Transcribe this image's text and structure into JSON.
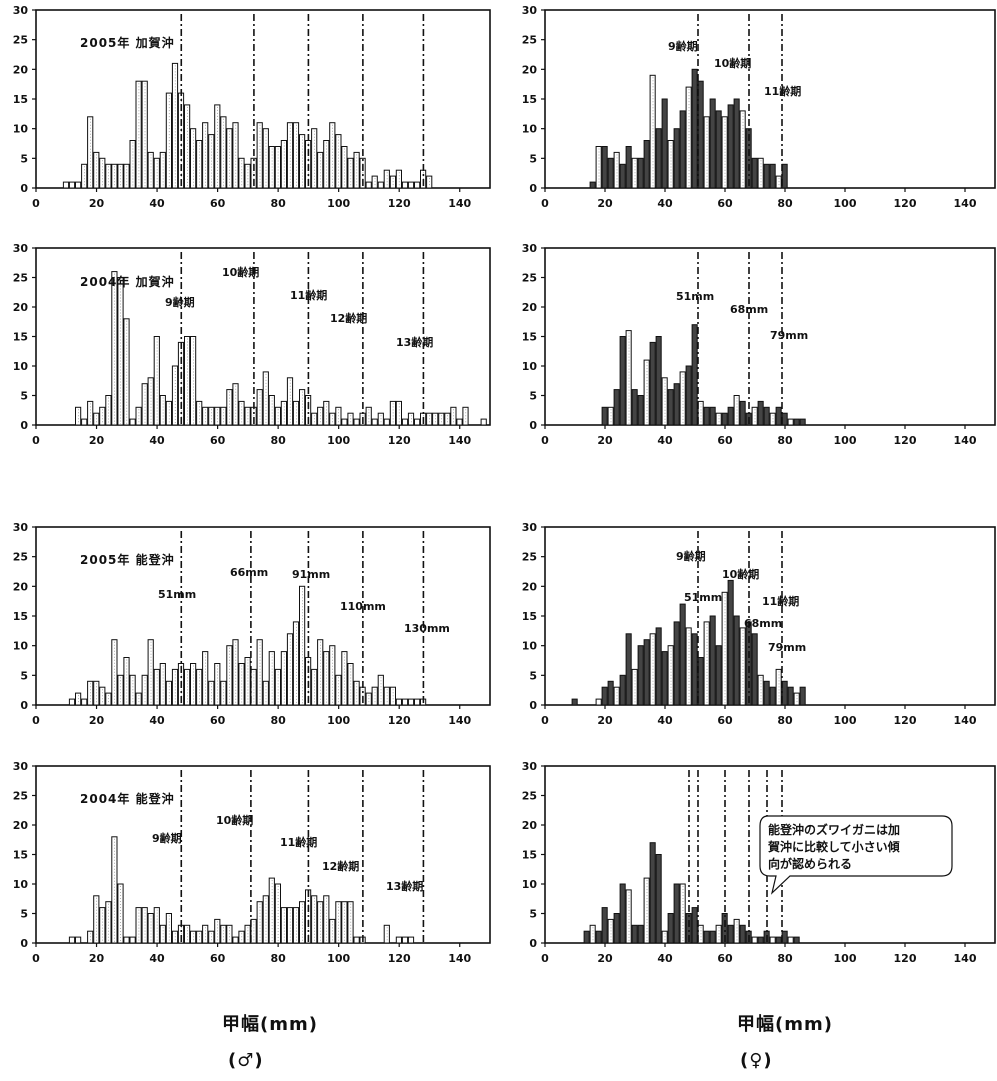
{
  "figure": {
    "xlabel": "甲幅(mm)",
    "sex_male": "(♂)",
    "sex_female": "(♀)"
  },
  "chart_data": [
    {
      "type": "bar",
      "panel": "male-2005-kaga",
      "title": "2005年  加賀沖",
      "xlim": [
        0,
        150
      ],
      "ylim": [
        0,
        30
      ],
      "xticks": [
        0,
        20,
        40,
        60,
        80,
        100,
        120,
        140
      ],
      "yticks": [
        0,
        5,
        10,
        15,
        20,
        25,
        30
      ],
      "lines": [
        48,
        72,
        90,
        108,
        128
      ],
      "labels": [],
      "x": [
        10,
        12,
        14,
        16,
        18,
        20,
        22,
        24,
        26,
        28,
        30,
        32,
        34,
        36,
        38,
        40,
        42,
        44,
        46,
        48,
        50,
        52,
        54,
        56,
        58,
        60,
        62,
        64,
        66,
        68,
        70,
        72,
        74,
        76,
        78,
        80,
        82,
        84,
        86,
        88,
        90,
        92,
        94,
        96,
        98,
        100,
        102,
        104,
        106,
        108,
        110,
        112,
        114,
        116,
        118,
        120,
        122,
        124,
        126,
        128,
        130,
        132
      ],
      "values": [
        1,
        1,
        1,
        4,
        12,
        6,
        5,
        4,
        4,
        4,
        4,
        8,
        18,
        18,
        6,
        5,
        6,
        16,
        21,
        16,
        14,
        10,
        8,
        11,
        9,
        14,
        12,
        10,
        11,
        5,
        4,
        5,
        11,
        10,
        7,
        7,
        8,
        11,
        11,
        9,
        8,
        10,
        6,
        8,
        11,
        9,
        7,
        5,
        6,
        5,
        1,
        2,
        1,
        3,
        2,
        3,
        1,
        1,
        1,
        3,
        2,
        0
      ]
    },
    {
      "type": "bar",
      "panel": "male-2004-kaga",
      "title": "2004年  加賀沖",
      "xlim": [
        0,
        150
      ],
      "ylim": [
        0,
        30
      ],
      "xticks": [
        0,
        20,
        40,
        60,
        80,
        100,
        120,
        140
      ],
      "yticks": [
        0,
        5,
        10,
        15,
        20,
        25,
        30
      ],
      "lines": [
        48,
        72,
        90,
        108,
        128
      ],
      "labels": [
        "9齢期",
        "10齢期",
        "11齢期",
        "12齢期",
        "13齢期"
      ],
      "x": [
        10,
        12,
        14,
        16,
        18,
        20,
        22,
        24,
        26,
        28,
        30,
        32,
        34,
        36,
        38,
        40,
        42,
        44,
        46,
        48,
        50,
        52,
        54,
        56,
        58,
        60,
        62,
        64,
        66,
        68,
        70,
        72,
        74,
        76,
        78,
        80,
        82,
        84,
        86,
        88,
        90,
        92,
        94,
        96,
        98,
        100,
        102,
        104,
        106,
        108,
        110,
        112,
        114,
        116,
        118,
        120,
        122,
        124,
        126,
        128,
        130,
        132,
        134,
        136,
        138,
        140,
        142,
        144,
        146,
        148
      ],
      "values": [
        0,
        0,
        3,
        1,
        4,
        2,
        3,
        5,
        26,
        25,
        18,
        1,
        3,
        7,
        8,
        15,
        5,
        4,
        10,
        14,
        15,
        15,
        4,
        3,
        3,
        3,
        3,
        6,
        7,
        4,
        3,
        3,
        6,
        9,
        5,
        3,
        4,
        8,
        4,
        6,
        5,
        2,
        3,
        4,
        2,
        3,
        1,
        2,
        1,
        2,
        3,
        1,
        2,
        1,
        4,
        4,
        1,
        2,
        1,
        2,
        2,
        2,
        2,
        2,
        3,
        1,
        3,
        0,
        0,
        1
      ]
    },
    {
      "type": "bar",
      "panel": "male-2005-noto",
      "title": "2005年  能登沖",
      "xlim": [
        0,
        150
      ],
      "ylim": [
        0,
        30
      ],
      "xticks": [
        0,
        20,
        40,
        60,
        80,
        100,
        120,
        140
      ],
      "yticks": [
        0,
        5,
        10,
        15,
        20,
        25,
        30
      ],
      "lines": [
        48,
        71,
        90,
        108,
        128
      ],
      "labels": [
        "51mm",
        "66mm",
        "91mm",
        "110mm",
        "130mm"
      ],
      "x": [
        10,
        12,
        14,
        16,
        18,
        20,
        22,
        24,
        26,
        28,
        30,
        32,
        34,
        36,
        38,
        40,
        42,
        44,
        46,
        48,
        50,
        52,
        54,
        56,
        58,
        60,
        62,
        64,
        66,
        68,
        70,
        72,
        74,
        76,
        78,
        80,
        82,
        84,
        86,
        88,
        90,
        92,
        94,
        96,
        98,
        100,
        102,
        104,
        106,
        108,
        110,
        112,
        114,
        116,
        118,
        120,
        122,
        124,
        126,
        128,
        130
      ],
      "values": [
        0,
        1,
        2,
        1,
        4,
        4,
        3,
        2,
        11,
        5,
        8,
        5,
        2,
        5,
        11,
        6,
        7,
        4,
        6,
        7,
        6,
        7,
        6,
        9,
        4,
        7,
        4,
        10,
        11,
        7,
        8,
        6,
        11,
        4,
        9,
        6,
        9,
        12,
        14,
        20,
        8,
        6,
        11,
        9,
        10,
        5,
        9,
        7,
        4,
        3,
        2,
        3,
        5,
        3,
        3,
        1,
        1,
        1,
        1,
        1,
        0
      ]
    },
    {
      "type": "bar",
      "panel": "male-2004-noto",
      "title": "2004年  能登沖",
      "xlim": [
        0,
        150
      ],
      "ylim": [
        0,
        30
      ],
      "xticks": [
        0,
        20,
        40,
        60,
        80,
        100,
        120,
        140
      ],
      "yticks": [
        0,
        5,
        10,
        15,
        20,
        25,
        30
      ],
      "lines": [
        48,
        71,
        90,
        108,
        128
      ],
      "labels": [
        "9齢期",
        "10齢期",
        "11齢期",
        "12齢期",
        "13齢期"
      ],
      "x": [
        12,
        14,
        16,
        18,
        20,
        22,
        24,
        26,
        28,
        30,
        32,
        34,
        36,
        38,
        40,
        42,
        44,
        46,
        48,
        50,
        52,
        54,
        56,
        58,
        60,
        62,
        64,
        66,
        68,
        70,
        72,
        74,
        76,
        78,
        80,
        82,
        84,
        86,
        88,
        90,
        92,
        94,
        96,
        98,
        100,
        102,
        104,
        106,
        108,
        110,
        112,
        114,
        116,
        118,
        120,
        122,
        124,
        126
      ],
      "values": [
        1,
        1,
        0,
        2,
        8,
        6,
        7,
        18,
        10,
        1,
        1,
        6,
        6,
        5,
        6,
        3,
        5,
        2,
        3,
        3,
        2,
        2,
        3,
        2,
        4,
        3,
        3,
        1,
        2,
        3,
        4,
        7,
        8,
        11,
        10,
        6,
        6,
        6,
        7,
        9,
        8,
        7,
        8,
        4,
        7,
        7,
        7,
        1,
        1,
        0,
        0,
        0,
        3,
        0,
        1,
        1,
        1,
        0
      ]
    },
    {
      "type": "bar",
      "panel": "female-2005-kaga",
      "title": "",
      "xlim": [
        0,
        150
      ],
      "ylim": [
        0,
        30
      ],
      "xticks": [
        0,
        20,
        40,
        60,
        80,
        100,
        120,
        140
      ],
      "yticks": [
        0,
        5,
        10,
        15,
        20,
        25,
        30
      ],
      "lines": [
        51,
        68,
        79
      ],
      "labels": [
        "9齢期",
        "10齢期",
        "11齢期"
      ],
      "x": [
        16,
        18,
        20,
        22,
        24,
        26,
        28,
        30,
        32,
        34,
        36,
        38,
        40,
        42,
        44,
        46,
        48,
        50,
        52,
        54,
        56,
        58,
        60,
        62,
        64,
        66,
        68,
        70,
        72,
        74,
        76,
        78,
        80
      ],
      "values": [
        1,
        7,
        7,
        5,
        6,
        4,
        7,
        5,
        5,
        8,
        19,
        10,
        15,
        8,
        10,
        13,
        17,
        20,
        18,
        12,
        15,
        13,
        12,
        14,
        15,
        13,
        10,
        5,
        5,
        4,
        4,
        2,
        4
      ]
    },
    {
      "type": "bar",
      "panel": "female-2004-kaga",
      "title": "",
      "xlim": [
        0,
        150
      ],
      "ylim": [
        0,
        30
      ],
      "xticks": [
        0,
        20,
        40,
        60,
        80,
        100,
        120,
        140
      ],
      "yticks": [
        0,
        5,
        10,
        15,
        20,
        25,
        30
      ],
      "lines": [
        51,
        68,
        79
      ],
      "labels": [
        "51mm",
        "68mm",
        "79mm"
      ],
      "x": [
        20,
        22,
        24,
        26,
        28,
        30,
        32,
        34,
        36,
        38,
        40,
        42,
        44,
        46,
        48,
        50,
        52,
        54,
        56,
        58,
        60,
        62,
        64,
        66,
        68,
        70,
        72,
        74,
        76,
        78,
        80,
        82,
        84,
        86
      ],
      "values": [
        3,
        3,
        6,
        15,
        16,
        6,
        5,
        11,
        14,
        15,
        8,
        6,
        7,
        9,
        10,
        17,
        4,
        3,
        3,
        2,
        2,
        3,
        5,
        4,
        2,
        3,
        4,
        3,
        2,
        3,
        2,
        1,
        1,
        1
      ]
    },
    {
      "type": "bar",
      "panel": "female-2005-noto",
      "title": "",
      "xlim": [
        0,
        150
      ],
      "ylim": [
        0,
        30
      ],
      "xticks": [
        0,
        20,
        40,
        60,
        80,
        100,
        120,
        140
      ],
      "yticks": [
        0,
        5,
        10,
        15,
        20,
        25,
        30
      ],
      "lines": [
        51,
        68,
        79
      ],
      "labels": [
        "9齢期",
        "51mm",
        "10齢期",
        "68mm",
        "11齢期",
        "79mm"
      ],
      "x": [
        10,
        18,
        20,
        22,
        24,
        26,
        28,
        30,
        32,
        34,
        36,
        38,
        40,
        42,
        44,
        46,
        48,
        50,
        52,
        54,
        56,
        58,
        60,
        62,
        64,
        66,
        68,
        70,
        72,
        74,
        76,
        78,
        80,
        82,
        84,
        86
      ],
      "values": [
        1,
        1,
        3,
        4,
        3,
        5,
        12,
        6,
        10,
        11,
        12,
        13,
        9,
        10,
        14,
        17,
        13,
        12,
        8,
        14,
        15,
        10,
        19,
        21,
        15,
        13,
        14,
        12,
        5,
        4,
        3,
        6,
        4,
        3,
        2,
        3
      ]
    },
    {
      "type": "bar",
      "panel": "female-2004-noto",
      "title": "",
      "xlim": [
        0,
        150
      ],
      "ylim": [
        0,
        30
      ],
      "xticks": [
        0,
        20,
        40,
        60,
        80,
        100,
        120,
        140
      ],
      "yticks": [
        0,
        5,
        10,
        15,
        20,
        25,
        30
      ],
      "lines": [
        48,
        51,
        60,
        68,
        74,
        79
      ],
      "labels": [],
      "annotation": [
        "能登沖のズワイガニは加",
        "賀沖に比較して小さい傾",
        "向が認められる"
      ],
      "x": [
        14,
        16,
        18,
        20,
        22,
        24,
        26,
        28,
        30,
        32,
        34,
        36,
        38,
        40,
        42,
        44,
        46,
        48,
        50,
        52,
        54,
        56,
        58,
        60,
        62,
        64,
        66,
        68,
        70,
        72,
        74,
        76,
        78,
        80,
        82,
        84
      ],
      "values": [
        2,
        3,
        2,
        6,
        4,
        5,
        10,
        9,
        3,
        3,
        11,
        17,
        15,
        2,
        5,
        10,
        10,
        5,
        6,
        3,
        2,
        2,
        3,
        5,
        3,
        4,
        3,
        2,
        1,
        1,
        2,
        1,
        1,
        2,
        1,
        1
      ]
    }
  ]
}
